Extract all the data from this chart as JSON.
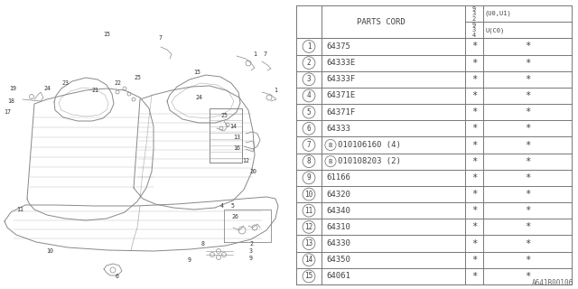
{
  "figure_code": "A641B00106",
  "background_color": "#ffffff",
  "line_color": "#888888",
  "text_color": "#444444",
  "table_line_color": "#777777",
  "rows": [
    {
      "num": "1",
      "code": "64375",
      "c1": "*",
      "c2": "*",
      "bold_b": false
    },
    {
      "num": "2",
      "code": "64333E",
      "c1": "*",
      "c2": "*",
      "bold_b": false
    },
    {
      "num": "3",
      "code": "64333F",
      "c1": "*",
      "c2": "*",
      "bold_b": false
    },
    {
      "num": "4",
      "code": "64371E",
      "c1": "*",
      "c2": "*",
      "bold_b": false
    },
    {
      "num": "5",
      "code": "64371F",
      "c1": "*",
      "c2": "*",
      "bold_b": false
    },
    {
      "num": "6",
      "code": "64333",
      "c1": "*",
      "c2": "*",
      "bold_b": false
    },
    {
      "num": "7",
      "code": "010106160 (4)",
      "c1": "*",
      "c2": "*",
      "bold_b": true
    },
    {
      "num": "8",
      "code": "010108203 (2)",
      "c1": "*",
      "c2": "*",
      "bold_b": true
    },
    {
      "num": "9",
      "code": "61166",
      "c1": "*",
      "c2": "*",
      "bold_b": false
    },
    {
      "num": "10",
      "code": "64320",
      "c1": "*",
      "c2": "*",
      "bold_b": false
    },
    {
      "num": "11",
      "code": "64340",
      "c1": "*",
      "c2": "*",
      "bold_b": false
    },
    {
      "num": "12",
      "code": "64310",
      "c1": "*",
      "c2": "*",
      "bold_b": false
    },
    {
      "num": "13",
      "code": "64330",
      "c1": "*",
      "c2": "*",
      "bold_b": false
    },
    {
      "num": "14",
      "code": "64350",
      "c1": "*",
      "c2": "*",
      "bold_b": false
    },
    {
      "num": "15",
      "code": "64061",
      "c1": "*",
      "c2": "*",
      "bold_b": false
    }
  ],
  "header_col1": "PARTS CORD",
  "header_top_left": "9\n3\n2",
  "header_top_right": "(U0,U1)",
  "header_bot_left": "9\n3\n4",
  "header_bot_right": "U(C0)",
  "font_size_data": 6.5,
  "font_size_header": 6.5,
  "font_size_small": 5.0
}
